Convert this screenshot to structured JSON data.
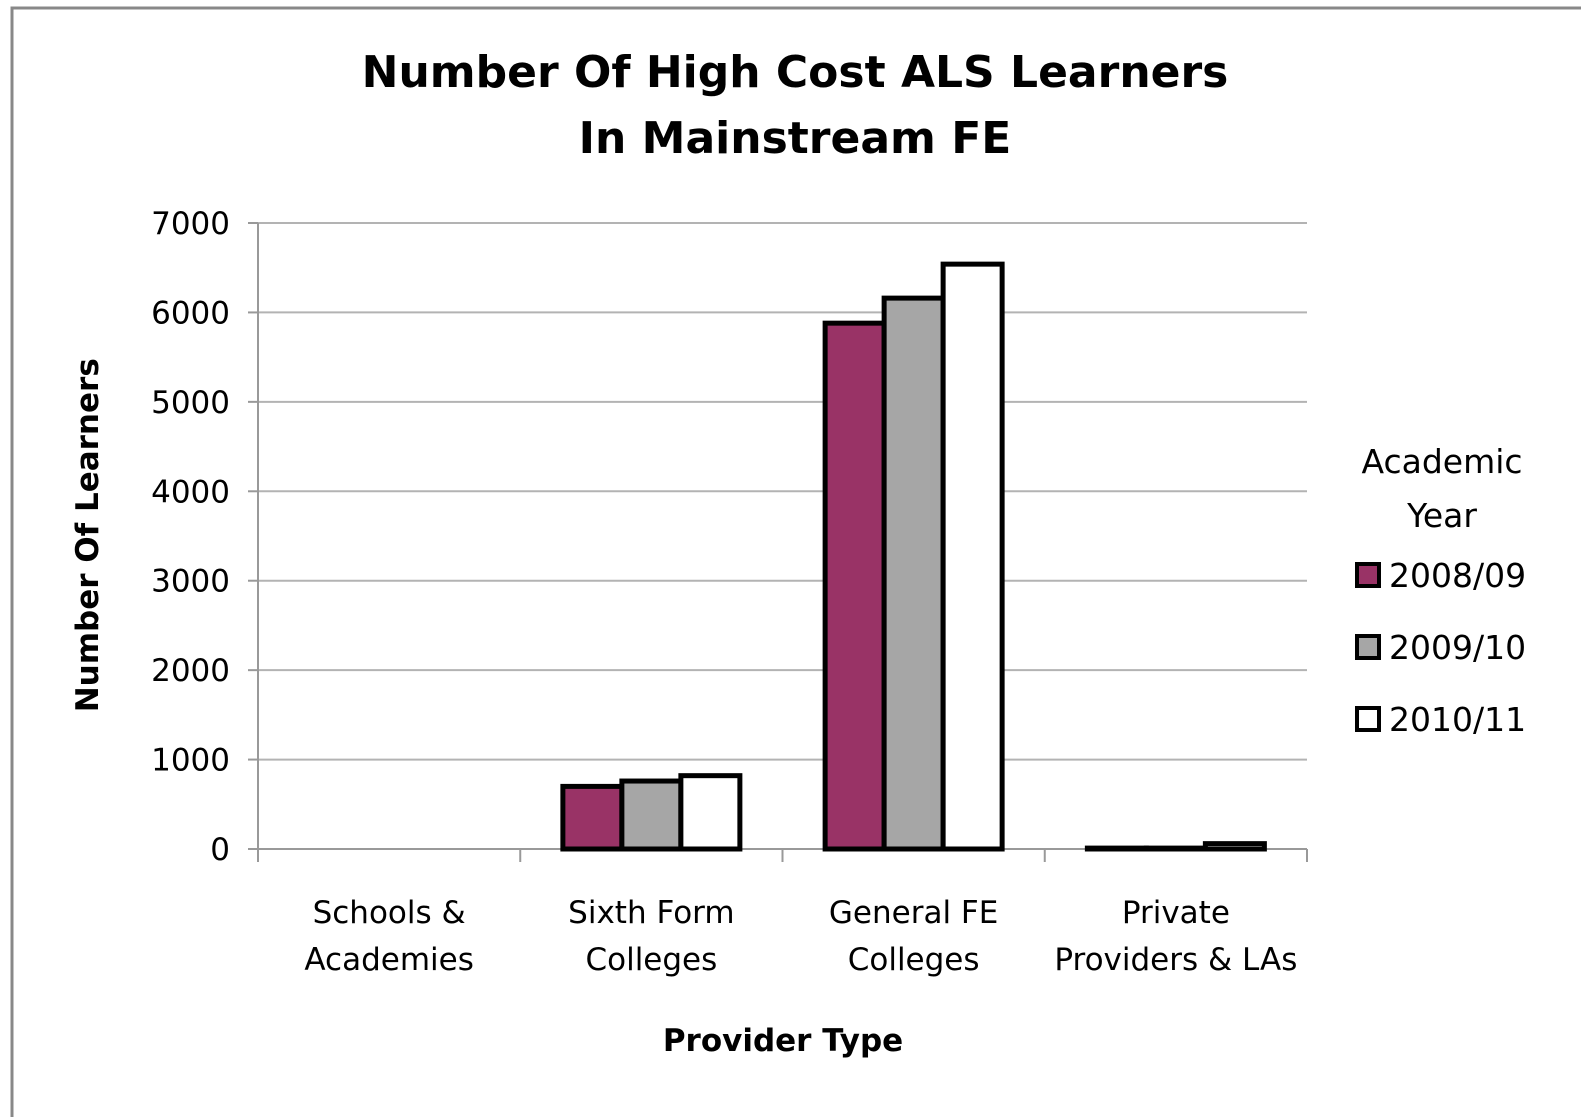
{
  "chart_data": {
    "type": "bar",
    "title": "Number Of High Cost ALS Learners\nIn Mainstream FE",
    "x_label": "Provider Type",
    "y_label": "Number Of Learners",
    "categories": [
      "Schools &\nAcademies",
      "Sixth Form\nColleges",
      "General FE\nColleges",
      "Private\nProviders & LAs"
    ],
    "series": [
      {
        "name": "2008/09",
        "color": "#993366",
        "values": [
          0,
          700,
          5880,
          10
        ]
      },
      {
        "name": "2009/10",
        "color": "#a6a6a6",
        "values": [
          0,
          760,
          6160,
          10
        ]
      },
      {
        "name": "2010/11",
        "color": "#ffffff",
        "values": [
          0,
          820,
          6540,
          60
        ]
      }
    ],
    "legend_title": "Academic\nYear",
    "legend": "right",
    "ylim": [
      0,
      7000
    ],
    "yticks": [
      0,
      1000,
      2000,
      3000,
      4000,
      5000,
      6000,
      7000
    ],
    "grid": true
  }
}
